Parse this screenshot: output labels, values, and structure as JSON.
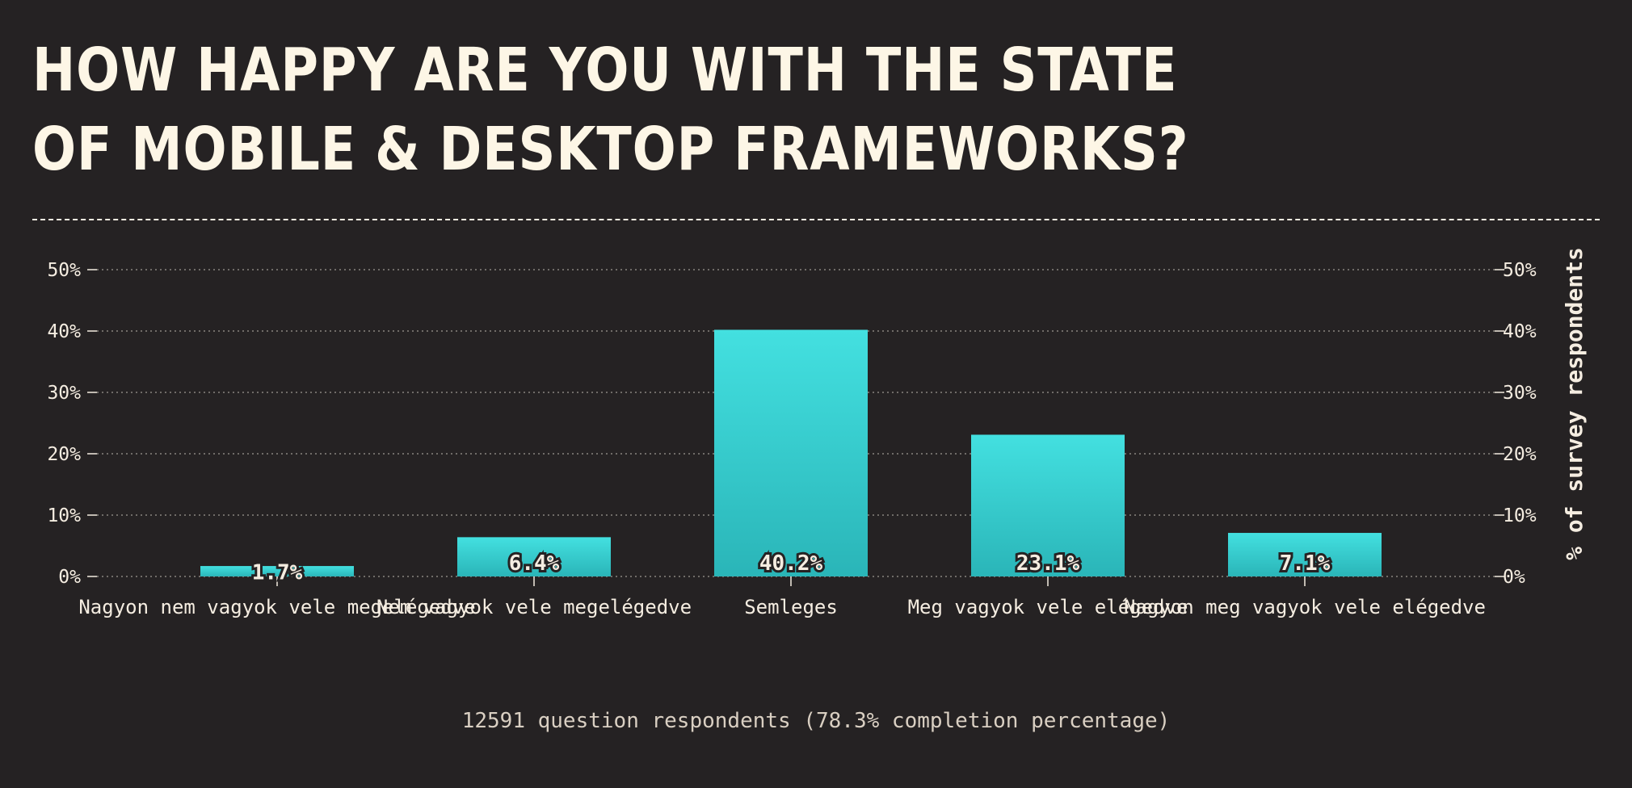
{
  "page": {
    "title": "HOW HAPPY ARE YOU WITH THE STATE OF MOBILE & DESKTOP FRAMEWORKS?",
    "footer": "12591 question respondents (78.3% completion percentage)"
  },
  "colors": {
    "bar_top": "#43e0e0",
    "bar_bottom": "#2ab5b8",
    "background": "#252223"
  },
  "chart_data": {
    "type": "bar",
    "categories": [
      "Nagyon nem vagyok vele megelégedve",
      "Nem vagyok vele megelégedve",
      "Semleges",
      "Meg vagyok vele elégedve",
      "Nagyon meg vagyok vele elégedve"
    ],
    "values": [
      1.7,
      6.4,
      40.2,
      23.1,
      7.1
    ],
    "value_labels": [
      "1.7%",
      "6.4%",
      "40.2%",
      "23.1%",
      "7.1%"
    ],
    "ylabel": "% of survey respondents",
    "ylim": [
      0,
      50
    ],
    "yticks": [
      "0%",
      "10%",
      "20%",
      "30%",
      "40%",
      "50%"
    ],
    "grid": true,
    "right_axis": true
  }
}
